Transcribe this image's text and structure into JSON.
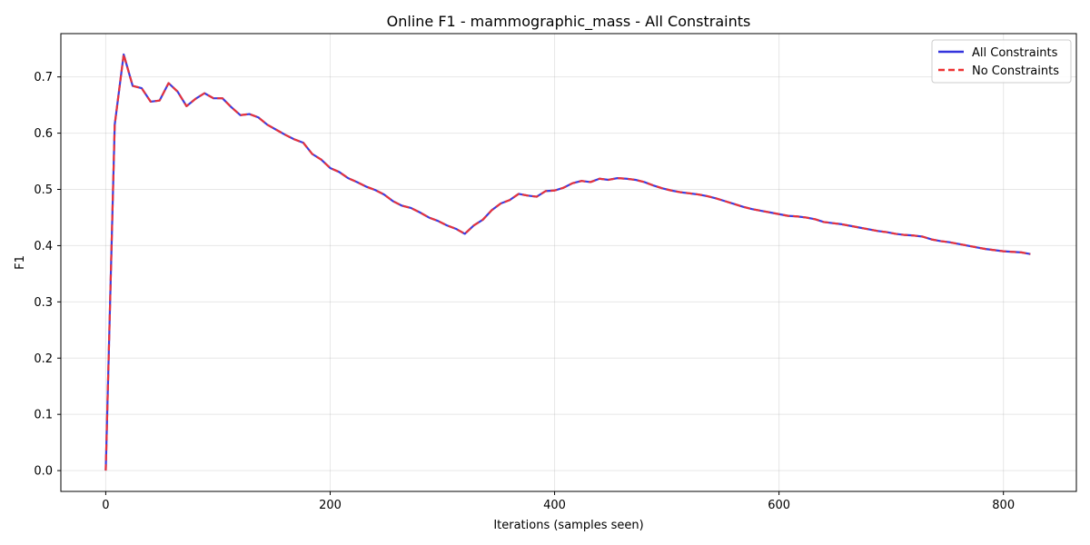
{
  "chart_data": {
    "type": "line",
    "title": "Online F1 - mammographic_mass - All Constraints",
    "xlabel": "Iterations (samples seen)",
    "ylabel": "F1",
    "xlim": [
      -40,
      865
    ],
    "ylim": [
      -0.037,
      0.777
    ],
    "xticks": [
      0,
      200,
      400,
      600,
      800
    ],
    "yticks": [
      0.0,
      0.1,
      0.2,
      0.3,
      0.4,
      0.5,
      0.6,
      0.7
    ],
    "grid": true,
    "legend_position": "top-right",
    "x": [
      0,
      8,
      16,
      24,
      32,
      40,
      48,
      56,
      64,
      72,
      80,
      88,
      96,
      104,
      112,
      120,
      128,
      136,
      144,
      152,
      160,
      168,
      176,
      184,
      192,
      200,
      208,
      216,
      224,
      232,
      240,
      248,
      256,
      264,
      272,
      280,
      288,
      296,
      304,
      312,
      320,
      328,
      336,
      344,
      352,
      360,
      368,
      376,
      384,
      392,
      400,
      408,
      416,
      424,
      432,
      440,
      448,
      456,
      464,
      472,
      480,
      488,
      496,
      504,
      512,
      520,
      528,
      536,
      544,
      552,
      560,
      568,
      576,
      584,
      592,
      600,
      608,
      616,
      624,
      632,
      640,
      648,
      656,
      664,
      672,
      680,
      688,
      696,
      704,
      712,
      720,
      728,
      736,
      744,
      752,
      760,
      768,
      776,
      784,
      792,
      800,
      808,
      816,
      824
    ],
    "series": [
      {
        "name": "All Constraints",
        "color": "#3333dd",
        "style": "solid",
        "values": [
          0.0,
          0.615,
          0.74,
          0.684,
          0.68,
          0.656,
          0.658,
          0.689,
          0.674,
          0.648,
          0.661,
          0.671,
          0.662,
          0.662,
          0.646,
          0.632,
          0.634,
          0.628,
          0.615,
          0.606,
          0.597,
          0.589,
          0.583,
          0.563,
          0.553,
          0.538,
          0.531,
          0.52,
          0.513,
          0.505,
          0.499,
          0.491,
          0.479,
          0.471,
          0.467,
          0.459,
          0.45,
          0.444,
          0.436,
          0.43,
          0.421,
          0.436,
          0.446,
          0.463,
          0.475,
          0.481,
          0.492,
          0.489,
          0.487,
          0.497,
          0.498,
          0.503,
          0.511,
          0.515,
          0.513,
          0.519,
          0.517,
          0.52,
          0.519,
          0.517,
          0.513,
          0.507,
          0.502,
          0.498,
          0.495,
          0.493,
          0.491,
          0.488,
          0.484,
          0.479,
          0.474,
          0.469,
          0.465,
          0.462,
          0.459,
          0.456,
          0.453,
          0.452,
          0.45,
          0.447,
          0.442,
          0.44,
          0.438,
          0.435,
          0.432,
          0.429,
          0.426,
          0.424,
          0.421,
          0.419,
          0.418,
          0.416,
          0.411,
          0.408,
          0.406,
          0.403,
          0.4,
          0.397,
          0.394,
          0.392,
          0.39,
          0.389,
          0.388,
          0.385
        ]
      },
      {
        "name": "No Constraints",
        "color": "#ee3333",
        "style": "dashed",
        "values": [
          0.0,
          0.615,
          0.74,
          0.684,
          0.68,
          0.656,
          0.658,
          0.689,
          0.674,
          0.648,
          0.661,
          0.671,
          0.662,
          0.662,
          0.646,
          0.632,
          0.634,
          0.628,
          0.615,
          0.606,
          0.597,
          0.589,
          0.583,
          0.563,
          0.553,
          0.538,
          0.531,
          0.52,
          0.513,
          0.505,
          0.499,
          0.491,
          0.479,
          0.471,
          0.467,
          0.459,
          0.45,
          0.444,
          0.436,
          0.43,
          0.421,
          0.436,
          0.446,
          0.463,
          0.475,
          0.481,
          0.492,
          0.489,
          0.487,
          0.497,
          0.498,
          0.503,
          0.511,
          0.515,
          0.513,
          0.519,
          0.517,
          0.52,
          0.519,
          0.517,
          0.513,
          0.507,
          0.502,
          0.498,
          0.495,
          0.493,
          0.491,
          0.488,
          0.484,
          0.479,
          0.474,
          0.469,
          0.465,
          0.462,
          0.459,
          0.456,
          0.453,
          0.452,
          0.45,
          0.447,
          0.442,
          0.44,
          0.438,
          0.435,
          0.432,
          0.429,
          0.426,
          0.424,
          0.421,
          0.419,
          0.418,
          0.416,
          0.411,
          0.408,
          0.406,
          0.403,
          0.4,
          0.397,
          0.394,
          0.392,
          0.39,
          0.389,
          0.388,
          0.385
        ]
      }
    ]
  }
}
